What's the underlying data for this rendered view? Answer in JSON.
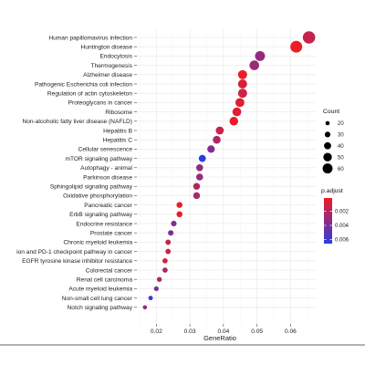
{
  "chart_data": {
    "type": "scatter",
    "xlabel": "GeneRatio",
    "xlim": [
      0.0142,
      0.0675
    ],
    "xticks": [
      0.02,
      0.03,
      0.04,
      0.05,
      0.06
    ],
    "xtick_labels": [
      "0.02",
      "0.03",
      "0.04",
      "0.05",
      "0.06"
    ],
    "grid": true,
    "categories": [
      "Human papillomavirus infection",
      "Huntington disease",
      "Endocytosis",
      "Thermogenesis",
      "Alzheimer disease",
      "Pathogenic Escherichia coli infection",
      "Regulation of actin cytoskeleton",
      "Proteoglycans in cancer",
      "Ribosome",
      "Non-alcoholic fatty liver disease (NAFLD)",
      "Hepatitis B",
      "Hepatitis C",
      "Cellular senescence",
      "mTOR signaling pathway",
      "Autophagy - animal",
      "Parkinson disease",
      "Sphingolipid signaling pathway",
      "Oxidative phosphorylation",
      "Pancreatic cancer",
      "ErbB signaling pathway",
      "Endocrine resistance",
      "Prostate cancer",
      "Chronic myeloid leukemia",
      "ion and PD-1 checkpoint pathway in cancer",
      "EGFR tyrosine kinase inhibitor resistance",
      "Colorectal cancer",
      "Renal cell carcinoma",
      "Acute myeloid leukemia",
      "Non-small cell lung cancer",
      "Notch signaling pathway"
    ],
    "gene_ratio": [
      0.0655,
      0.0617,
      0.0509,
      0.0492,
      0.0457,
      0.0457,
      0.0457,
      0.0449,
      0.044,
      0.0431,
      0.0389,
      0.038,
      0.0363,
      0.0337,
      0.0329,
      0.0329,
      0.032,
      0.032,
      0.0269,
      0.0269,
      0.0252,
      0.0243,
      0.0235,
      0.0235,
      0.0226,
      0.0226,
      0.0209,
      0.02,
      0.0183,
      0.0166
    ],
    "count": [
      77,
      73,
      60,
      58,
      54,
      54,
      54,
      53,
      52,
      51,
      46,
      45,
      43,
      40,
      39,
      39,
      38,
      38,
      32,
      32,
      30,
      29,
      28,
      28,
      27,
      27,
      25,
      24,
      22,
      20
    ],
    "p_adjust": [
      0.0015,
      0.0001,
      0.0032,
      0.0028,
      0.0001,
      0.0008,
      0.0012,
      0.0006,
      0.0005,
      0.0003,
      0.0013,
      0.0022,
      0.0038,
      0.0066,
      0.0032,
      0.0031,
      0.0022,
      0.0024,
      0.0003,
      0.0004,
      0.0037,
      0.004,
      0.0016,
      0.0012,
      0.001,
      0.0022,
      0.0021,
      0.004,
      0.0062,
      0.0033
    ],
    "size_legend": {
      "title": "Count",
      "values": [
        20,
        30,
        40,
        50,
        60
      ],
      "labels": [
        "20",
        "30",
        "40",
        "50",
        "60"
      ]
    },
    "color_legend": {
      "title": "p.adjust",
      "range": [
        0.0001,
        0.0066
      ],
      "ticks": [
        0.002,
        0.004,
        0.006
      ],
      "tick_labels": [
        "0.002",
        "0.004",
        "0.006"
      ],
      "colors": [
        "#ee1c25",
        "#2a3ee0"
      ]
    },
    "legend_position": "right"
  }
}
